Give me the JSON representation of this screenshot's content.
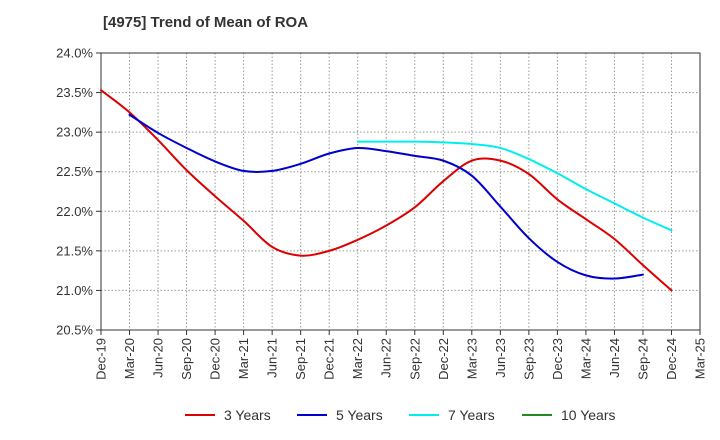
{
  "chart_data": {
    "type": "line",
    "title": "[4975]  Trend of Mean of ROA",
    "xlabel": "",
    "ylabel": "",
    "ylim": [
      20.5,
      24.0
    ],
    "yticks": [
      20.5,
      21.0,
      21.5,
      22.0,
      22.5,
      23.0,
      23.5,
      24.0
    ],
    "ytick_labels": [
      "20.5%",
      "21.0%",
      "21.5%",
      "22.0%",
      "22.5%",
      "23.0%",
      "23.5%",
      "24.0%"
    ],
    "x_tick_labels": [
      "Dec-19",
      "Mar-20",
      "Jun-20",
      "Sep-20",
      "Dec-20",
      "Mar-21",
      "Jun-21",
      "Sep-21",
      "Dec-21",
      "Mar-22",
      "Jun-22",
      "Sep-22",
      "Dec-22",
      "Mar-23",
      "Jun-23",
      "Sep-23",
      "Dec-23",
      "Mar-24",
      "Jun-24",
      "Sep-24",
      "Dec-24",
      "Mar-25"
    ],
    "grid": true,
    "legend_position": "bottom",
    "series": [
      {
        "name": "3 Years",
        "color": "#dd0000",
        "start_index": 0,
        "values": [
          23.53,
          23.25,
          22.9,
          22.52,
          22.19,
          21.88,
          21.55,
          21.44,
          21.5,
          21.64,
          21.82,
          22.05,
          22.38,
          22.64,
          22.64,
          22.47,
          22.15,
          21.9,
          21.65,
          21.32,
          21.0
        ]
      },
      {
        "name": "5 Years",
        "color": "#0000cc",
        "start_index": 1,
        "values": [
          23.22,
          22.99,
          22.8,
          22.63,
          22.51,
          22.51,
          22.6,
          22.73,
          22.8,
          22.76,
          22.7,
          22.64,
          22.45,
          22.06,
          21.66,
          21.36,
          21.19,
          21.15,
          21.2
        ]
      },
      {
        "name": "7 Years",
        "color": "#00eeee",
        "start_index": 9,
        "values": [
          22.88,
          22.88,
          22.88,
          22.87,
          22.85,
          22.8,
          22.66,
          22.48,
          22.28,
          22.1,
          21.92,
          21.76
        ]
      },
      {
        "name": "10 Years",
        "color": "#228b22",
        "start_index": 0,
        "values": []
      }
    ]
  }
}
